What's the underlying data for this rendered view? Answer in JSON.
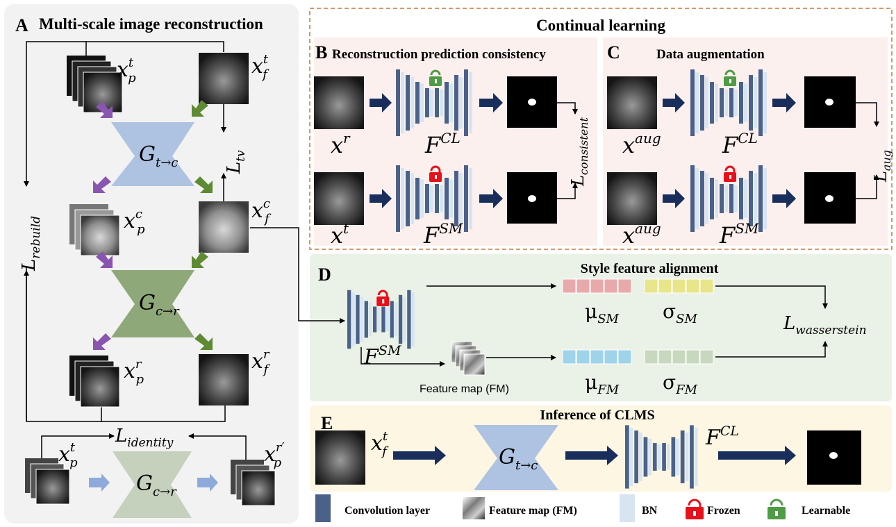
{
  "panel_a": {
    "letter": "A",
    "title": "Multi-scale image reconstruction",
    "generator_tc": "G",
    "generator_tc_sub": "t→c",
    "generator_cr": "G",
    "generator_cr_sub": "c→r",
    "x_p_t": {
      "base": "x",
      "sup": "t",
      "sub": "p"
    },
    "x_f_t": {
      "base": "x",
      "sup": "t",
      "sub": "f"
    },
    "x_p_c": {
      "base": "x",
      "sup": "c",
      "sub": "p"
    },
    "x_f_c": {
      "base": "x",
      "sup": "c",
      "sub": "f"
    },
    "x_p_r": {
      "base": "x",
      "sup": "r",
      "sub": "p"
    },
    "x_f_r": {
      "base": "x",
      "sup": "r",
      "sub": "f"
    },
    "x_p_t2": {
      "base": "x",
      "sup": "t",
      "sub": "p"
    },
    "x_p_r2": {
      "base": "x",
      "sup": "r′",
      "sub": "p"
    },
    "loss_tv": {
      "base": "L",
      "sub": "tv"
    },
    "loss_rebuild": {
      "base": "L",
      "sub": "rebuild"
    },
    "loss_identity": {
      "base": "L",
      "sub": "identity"
    }
  },
  "continual": {
    "title": "Continual learning"
  },
  "panel_b": {
    "letter": "B",
    "title": "Reconstruction prediction consistency",
    "x_r": {
      "base": "x",
      "sup": "r"
    },
    "x_t": {
      "base": "x",
      "sup": "t"
    },
    "f_cl": {
      "base": "F",
      "sup": "CL"
    },
    "f_sm": {
      "base": "F",
      "sup": "SM"
    },
    "loss": {
      "base": "L",
      "sub": "consistent"
    }
  },
  "panel_c": {
    "letter": "C",
    "title": "Data augmentation",
    "x_aug1": {
      "base": "x",
      "sup": "aug"
    },
    "x_aug2": {
      "base": "x",
      "sup": "aug"
    },
    "f_cl": {
      "base": "F",
      "sup": "CL"
    },
    "f_sm": {
      "base": "F",
      "sup": "SM"
    },
    "loss": {
      "base": "L",
      "sub": "aug"
    }
  },
  "panel_d": {
    "letter": "D",
    "title": "Style feature alignment",
    "f_sm": {
      "base": "F",
      "sup": "SM"
    },
    "feature_map_label": "Feature map (FM)",
    "mu_sm": {
      "base": "μ",
      "sub": "SM"
    },
    "sigma_sm": {
      "base": "σ",
      "sub": "SM"
    },
    "mu_fm": {
      "base": "μ",
      "sub": "FM"
    },
    "sigma_fm": {
      "base": "σ",
      "sub": "FM"
    },
    "loss": {
      "base": "L",
      "sub": "wasserstein"
    }
  },
  "panel_e": {
    "letter": "E",
    "title": "Inference of CLMS",
    "x_f_t": {
      "base": "x",
      "sup": "t",
      "sub": "f"
    },
    "generator": "G",
    "generator_sub": "t→c",
    "f_cl": {
      "base": "F",
      "sup": "CL"
    }
  },
  "legend": {
    "conv": "Convolution layer",
    "fm": "Feature map (FM)",
    "bn": "BN",
    "frozen": "Frozen",
    "learnable": "Learnable"
  },
  "colors": {
    "conv_layer": "#4a6289",
    "bn_layer": "#d7e4f2",
    "arrow_navy": "#1a2e5c",
    "arrow_purple": "#8a55b0",
    "arrow_green": "#5e8a34",
    "arrow_light_blue": "#8eaadb",
    "gen_blue": "#aec3e2",
    "gen_green": "#8fa87a",
    "gen_grey_green": "#c5d0bd",
    "panel_a_bg": "#f2f2f2",
    "panel_bc_bg": "#fbf0ee",
    "panel_d_bg": "#eaf1e6",
    "panel_e_bg": "#fcf6e3",
    "dash_border": "#c6763a",
    "lock_frozen": "#e8101a",
    "lock_learnable": "#4f9c46",
    "mu_sm": "#e8a9ab",
    "sigma_sm": "#e8e58a",
    "mu_fm": "#9fd3ea",
    "sigma_fm": "#c7d8bf"
  },
  "icons": [
    "frozen-lock-icon",
    "learnable-lock-icon",
    "mri-scan-image",
    "segmentation-mask-image",
    "feature-map-stack"
  ]
}
